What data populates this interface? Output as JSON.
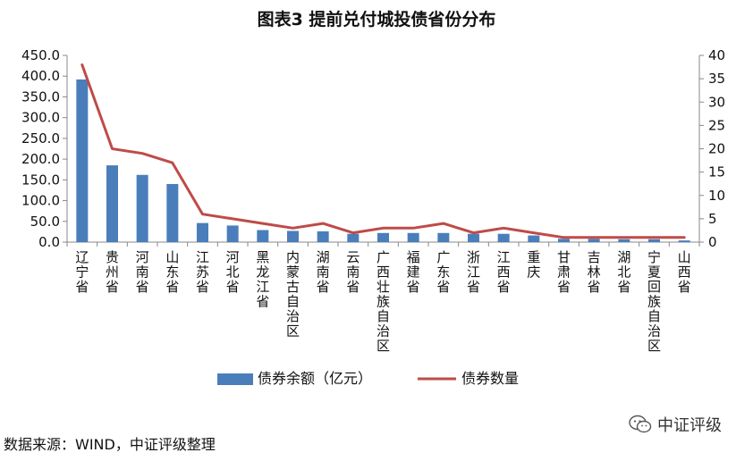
{
  "chart_data": {
    "type": "bar",
    "title": "图表3 提前兑付城投债省份分布",
    "categories": [
      "辽宁省",
      "贵州省",
      "河南省",
      "山东省",
      "江苏省",
      "河北省",
      "黑龙江省",
      "内蒙古自治区",
      "湖南省",
      "云南省",
      "广西壮族自治区",
      "福建省",
      "广东省",
      "浙江省",
      "江西省",
      "重庆",
      "甘肃省",
      "吉林省",
      "湖北省",
      "宁夏回族自治区",
      "山西省"
    ],
    "series": [
      {
        "name": "债券余额（亿元）",
        "type": "bar",
        "axis": "left",
        "color": "#4A7EBB",
        "values": [
          392,
          185,
          162,
          140,
          46,
          40,
          29,
          27,
          26,
          20,
          22,
          22,
          22,
          20,
          20,
          16,
          8,
          8,
          7,
          7,
          4
        ]
      },
      {
        "name": "债券数量",
        "type": "line",
        "axis": "right",
        "color": "#BE4B48",
        "values": [
          38,
          20,
          19,
          17,
          6,
          5,
          4,
          3,
          4,
          2,
          3,
          3,
          4,
          2,
          3,
          2,
          1,
          1,
          1,
          1,
          1
        ]
      }
    ],
    "y_left": {
      "min": 0,
      "max": 450,
      "step": 50,
      "ticks": [
        "0.0",
        "50.0",
        "100.0",
        "150.0",
        "200.0",
        "250.0",
        "300.0",
        "350.0",
        "400.0",
        "450.0"
      ]
    },
    "y_right": {
      "min": 0,
      "max": 40,
      "step": 5,
      "ticks": [
        "0",
        "5",
        "10",
        "15",
        "20",
        "25",
        "30",
        "35",
        "40"
      ]
    },
    "grid": false,
    "legend_position": "bottom"
  },
  "footer": {
    "source": "数据来源：WIND，中证评级整理",
    "watermark": "中证评级"
  },
  "icons": {
    "watermark_icon": "wechat-icon"
  }
}
